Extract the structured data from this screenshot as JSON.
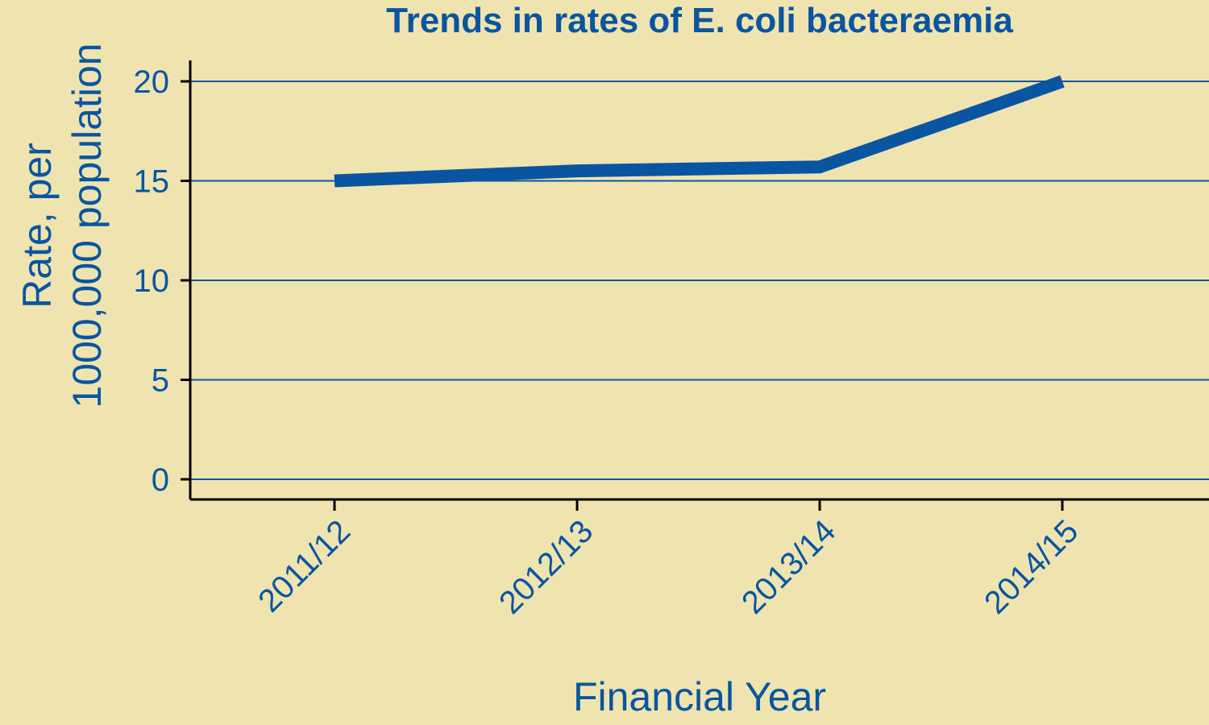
{
  "chart_data": {
    "type": "line",
    "title": "Trends in rates of  E. coli bacteraemia",
    "xlabel": "Financial Year",
    "ylabel_lines": [
      "Rate, per",
      "1000,000 population"
    ],
    "categories": [
      "2011/12",
      "2012/13",
      "2013/14",
      "2014/15"
    ],
    "series": [
      {
        "values": [
          15.0,
          15.5,
          15.7,
          20.0
        ]
      }
    ],
    "ylim": [
      0,
      20
    ],
    "yticks": [
      0,
      5,
      10,
      15,
      20
    ],
    "grid": "horizontal",
    "legend": "none"
  },
  "colors": {
    "background": "#efe4b0",
    "series": "#0a55a1",
    "text": "#0a55a1",
    "gridline": "#0a55a1",
    "axis": "#000000"
  }
}
